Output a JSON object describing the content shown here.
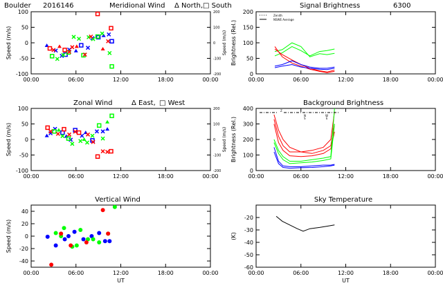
{
  "header": {
    "station": "Boulder",
    "date_code": "2016146"
  },
  "chart_data": [
    {
      "id": "meridional",
      "type": "scatter",
      "title": "Meridional Wind",
      "legend_text": [
        "Δ North,",
        "□ South"
      ],
      "ylabel": "Speed (m/s)",
      "ylabel_right": "Speed (m/s)",
      "ylim": [
        -100,
        100
      ],
      "yticks": [
        -100,
        -50,
        0,
        50,
        100
      ],
      "right_ylim": [
        -200,
        200
      ],
      "right_yticks": [
        -200,
        -100,
        0,
        100,
        200
      ],
      "xlim": [
        0,
        24
      ],
      "xticklabels": [
        "00:00",
        "06:00",
        "12:00",
        "18:00",
        "00:00"
      ],
      "series": [
        {
          "color": "#0000ff",
          "points": [
            [
              2.1,
              -9
            ],
            [
              3.3,
              -25
            ],
            [
              4.1,
              -42
            ],
            [
              4.6,
              -38
            ],
            [
              5.1,
              -22
            ],
            [
              6.0,
              -26
            ],
            [
              6.7,
              -8
            ],
            [
              7.6,
              -16
            ],
            [
              8.2,
              15
            ],
            [
              9.0,
              18
            ],
            [
              9.7,
              23
            ],
            [
              10.4,
              27
            ],
            [
              10.8,
              5
            ]
          ]
        },
        {
          "color": "#00ff00",
          "points": [
            [
              2.8,
              -43
            ],
            [
              3.5,
              -52
            ],
            [
              4.3,
              -39
            ],
            [
              5.0,
              -31
            ],
            [
              5.7,
              19
            ],
            [
              6.4,
              13
            ],
            [
              7.0,
              -40
            ],
            [
              7.7,
              18
            ],
            [
              8.3,
              12
            ],
            [
              8.9,
              20
            ],
            [
              9.5,
              30
            ],
            [
              10.5,
              -33
            ],
            [
              10.8,
              -76
            ]
          ]
        },
        {
          "color": "#ff0000",
          "points": [
            [
              2.5,
              -18
            ],
            [
              3.0,
              -23
            ],
            [
              3.8,
              -12
            ],
            [
              4.5,
              -23
            ],
            [
              5.1,
              -29
            ],
            [
              5.5,
              -14
            ],
            [
              6.1,
              -12
            ],
            [
              7.2,
              -38
            ],
            [
              8.0,
              20
            ],
            [
              8.9,
              93
            ],
            [
              9.6,
              -20
            ],
            [
              10.3,
              5
            ],
            [
              10.7,
              47
            ]
          ]
        }
      ]
    },
    {
      "id": "zonal",
      "type": "scatter",
      "title": "Zonal Wind",
      "legend_text": [
        "Δ East,",
        "□ West"
      ],
      "ylabel": "Speed (m/s)",
      "ylabel_right": "Speed (m/s)",
      "ylim": [
        -100,
        100
      ],
      "yticks": [
        -100,
        -50,
        0,
        50,
        100
      ],
      "right_ylim": [
        -200,
        200
      ],
      "right_yticks": [
        -200,
        -100,
        0,
        100,
        200
      ],
      "xlim": [
        0,
        24
      ],
      "xticklabels": [
        "00:00",
        "06:00",
        "12:00",
        "18:00",
        "00:00"
      ],
      "series": [
        {
          "color": "#0000ff",
          "points": [
            [
              2.1,
              12
            ],
            [
              2.6,
              20
            ],
            [
              3.2,
              34
            ],
            [
              4.2,
              22
            ],
            [
              4.7,
              10
            ],
            [
              5.3,
              -1
            ],
            [
              5.9,
              30
            ],
            [
              6.8,
              12
            ],
            [
              7.3,
              22
            ],
            [
              8.2,
              -3
            ],
            [
              8.8,
              26
            ],
            [
              9.6,
              26
            ],
            [
              10.2,
              33
            ]
          ]
        },
        {
          "color": "#00ff00",
          "points": [
            [
              3.1,
              26
            ],
            [
              3.7,
              30
            ],
            [
              4.2,
              11
            ],
            [
              5.0,
              3
            ],
            [
              5.5,
              -14
            ],
            [
              6.6,
              -5
            ],
            [
              7.1,
              0
            ],
            [
              7.5,
              -10
            ],
            [
              8.2,
              12
            ],
            [
              9.1,
              45
            ],
            [
              9.6,
              3
            ],
            [
              10.2,
              56
            ],
            [
              10.8,
              76
            ]
          ]
        },
        {
          "color": "#ff0000",
          "points": [
            [
              2.2,
              38
            ],
            [
              2.6,
              26
            ],
            [
              3.6,
              18
            ],
            [
              4.4,
              33
            ],
            [
              5.1,
              16
            ],
            [
              5.9,
              25
            ],
            [
              6.4,
              22
            ],
            [
              7.6,
              16
            ],
            [
              8.3,
              -8
            ],
            [
              8.9,
              -55
            ],
            [
              9.6,
              -38
            ],
            [
              10.2,
              -40
            ],
            [
              10.7,
              -38
            ]
          ]
        }
      ]
    },
    {
      "id": "vertical",
      "type": "scatter",
      "title": "Vertical Wind",
      "ylabel": "Speed (m/s)",
      "ylim": [
        -50,
        50
      ],
      "yticks": [
        -40,
        -20,
        0,
        20,
        40
      ],
      "xlim": [
        0,
        24
      ],
      "xticklabels": [
        "00:00",
        "06:00",
        "12:00",
        "18:00",
        "00:00"
      ],
      "xlabel": "UT",
      "series": [
        {
          "color": "#0000ff",
          "points": [
            [
              2.2,
              -1
            ],
            [
              3.3,
              -15
            ],
            [
              4.5,
              -5
            ],
            [
              5.0,
              0
            ],
            [
              5.8,
              7
            ],
            [
              7.0,
              -5
            ],
            [
              8.1,
              0
            ],
            [
              9.1,
              5
            ],
            [
              9.9,
              -8
            ],
            [
              10.5,
              -8
            ]
          ]
        },
        {
          "color": "#00ff00",
          "points": [
            [
              3.3,
              5
            ],
            [
              4.0,
              0
            ],
            [
              4.4,
              13
            ],
            [
              5.5,
              -17
            ],
            [
              6.1,
              -15
            ],
            [
              6.6,
              10
            ],
            [
              7.6,
              -5
            ],
            [
              8.3,
              -5
            ],
            [
              9.1,
              -10
            ],
            [
              10.3,
              4
            ],
            [
              11.2,
              47
            ]
          ]
        },
        {
          "color": "#ff0000",
          "points": [
            [
              2.7,
              -46
            ],
            [
              4.0,
              4
            ],
            [
              5.3,
              -15
            ],
            [
              7.4,
              -10
            ],
            [
              9.6,
              42
            ],
            [
              10.3,
              4
            ]
          ]
        }
      ]
    },
    {
      "id": "signal",
      "type": "line",
      "title": "Signal Brightness",
      "title_suffix": "6300",
      "legend": [
        "Zenith",
        "NSWE Average"
      ],
      "ylabel": "Brightness (Rel.)",
      "ylim": [
        0,
        200
      ],
      "yticks": [
        0,
        50,
        100,
        150,
        200
      ],
      "xlim": [
        0,
        24
      ],
      "xticklabels": [
        "00:00",
        "06:00",
        "12:00",
        "18:00",
        "00:00"
      ],
      "series": [
        {
          "color": "#00ff00",
          "x": [
            2.5,
            3.5,
            4.8,
            6.0,
            7.2,
            8.5,
            9.5,
            10.5
          ],
          "y": [
            72,
            78,
            100,
            88,
            55,
            65,
            62,
            66
          ]
        },
        {
          "color": "#00ff00",
          "x": [
            2.5,
            3.5,
            4.8,
            6.0,
            7.2,
            8.5,
            9.5,
            10.5
          ],
          "y": [
            58,
            68,
            88,
            75,
            58,
            72,
            75,
            80
          ]
        },
        {
          "color": "#ff0000",
          "x": [
            2.5,
            3.5,
            4.8,
            6.0,
            7.2,
            8.5,
            9.5,
            10.5
          ],
          "y": [
            88,
            55,
            35,
            25,
            15,
            8,
            4,
            8
          ]
        },
        {
          "color": "#ff0000",
          "x": [
            2.5,
            3.5,
            4.8,
            6.0,
            7.2,
            8.5,
            9.5,
            10.5
          ],
          "y": [
            80,
            62,
            45,
            30,
            18,
            10,
            6,
            12
          ]
        },
        {
          "color": "#0000ff",
          "x": [
            2.5,
            3.5,
            4.8,
            6.0,
            7.2,
            8.5,
            9.5,
            10.5
          ],
          "y": [
            25,
            30,
            42,
            30,
            22,
            18,
            18,
            22
          ]
        },
        {
          "color": "#0000ff",
          "x": [
            2.5,
            3.5,
            4.8,
            6.0,
            7.2,
            8.5,
            9.5,
            10.5
          ],
          "y": [
            20,
            25,
            30,
            22,
            18,
            15,
            14,
            18
          ]
        }
      ]
    },
    {
      "id": "background",
      "type": "line",
      "title": "Background Brightness",
      "inline_labels": [
        "Z",
        "N",
        "S",
        "W",
        "E"
      ],
      "ylabel": "Brightness (Rel.)",
      "ylim": [
        0,
        400
      ],
      "yticks": [
        0,
        100,
        200,
        300,
        400
      ],
      "xlim": [
        0,
        24
      ],
      "xticklabels": [
        "00:00",
        "06:00",
        "12:00",
        "18:00",
        "00:00"
      ],
      "series": [
        {
          "color": "#ff0000",
          "x": [
            2.4,
            3.0,
            3.6,
            4.5,
            6.0,
            7.5,
            9.0,
            10.0,
            10.5
          ],
          "y": [
            360,
            260,
            200,
            150,
            120,
            130,
            150,
            200,
            380
          ]
        },
        {
          "color": "#ff0000",
          "x": [
            2.4,
            3.0,
            3.6,
            4.5,
            6.0,
            7.5,
            9.0,
            10.0,
            10.5
          ],
          "y": [
            330,
            220,
            160,
            120,
            120,
            110,
            130,
            160,
            300
          ]
        },
        {
          "color": "#ff0000",
          "x": [
            2.4,
            3.0,
            3.6,
            4.5,
            6.0,
            7.5,
            9.0,
            10.0,
            10.5
          ],
          "y": [
            300,
            180,
            130,
            95,
            90,
            95,
            110,
            140,
            250
          ]
        },
        {
          "color": "#00ff00",
          "x": [
            2.4,
            3.0,
            3.6,
            4.5,
            6.0,
            7.5,
            9.0,
            10.0,
            10.5
          ],
          "y": [
            200,
            130,
            90,
            60,
            60,
            70,
            80,
            90,
            400
          ]
        },
        {
          "color": "#00ff00",
          "x": [
            2.4,
            3.0,
            3.6,
            4.5,
            6.0,
            7.5,
            9.0,
            10.0,
            10.5
          ],
          "y": [
            180,
            110,
            70,
            45,
            50,
            55,
            65,
            75,
            300
          ]
        },
        {
          "color": "#0000ff",
          "x": [
            2.4,
            3.0,
            3.6,
            4.5,
            6.0,
            7.5,
            9.0,
            10.0,
            10.5
          ],
          "y": [
            150,
            60,
            30,
            25,
            25,
            30,
            35,
            35,
            40
          ]
        },
        {
          "color": "#0000ff",
          "x": [
            2.4,
            3.0,
            3.6,
            4.5,
            6.0,
            7.5,
            9.0,
            10.0,
            10.5
          ],
          "y": [
            120,
            45,
            20,
            15,
            18,
            20,
            25,
            30,
            35
          ]
        }
      ]
    },
    {
      "id": "sky",
      "type": "line",
      "title": "Sky Temperature",
      "ylabel": "(K)",
      "ylim": [
        -60,
        -10
      ],
      "yticks": [
        -60,
        -50,
        -40,
        -30,
        -20
      ],
      "xlim": [
        0,
        24
      ],
      "xticklabels": [
        "00:00",
        "06:00",
        "12:00",
        "18:00",
        "00:00"
      ],
      "xlabel": "UT",
      "series": [
        {
          "color": "#000000",
          "x": [
            2.7,
            3.5,
            4.5,
            5.5,
            6.3,
            7.2,
            8.5,
            9.5,
            10.5
          ],
          "y": [
            -19,
            -23,
            -26,
            -29,
            -31,
            -29,
            -28,
            -27,
            -26
          ]
        }
      ]
    }
  ]
}
